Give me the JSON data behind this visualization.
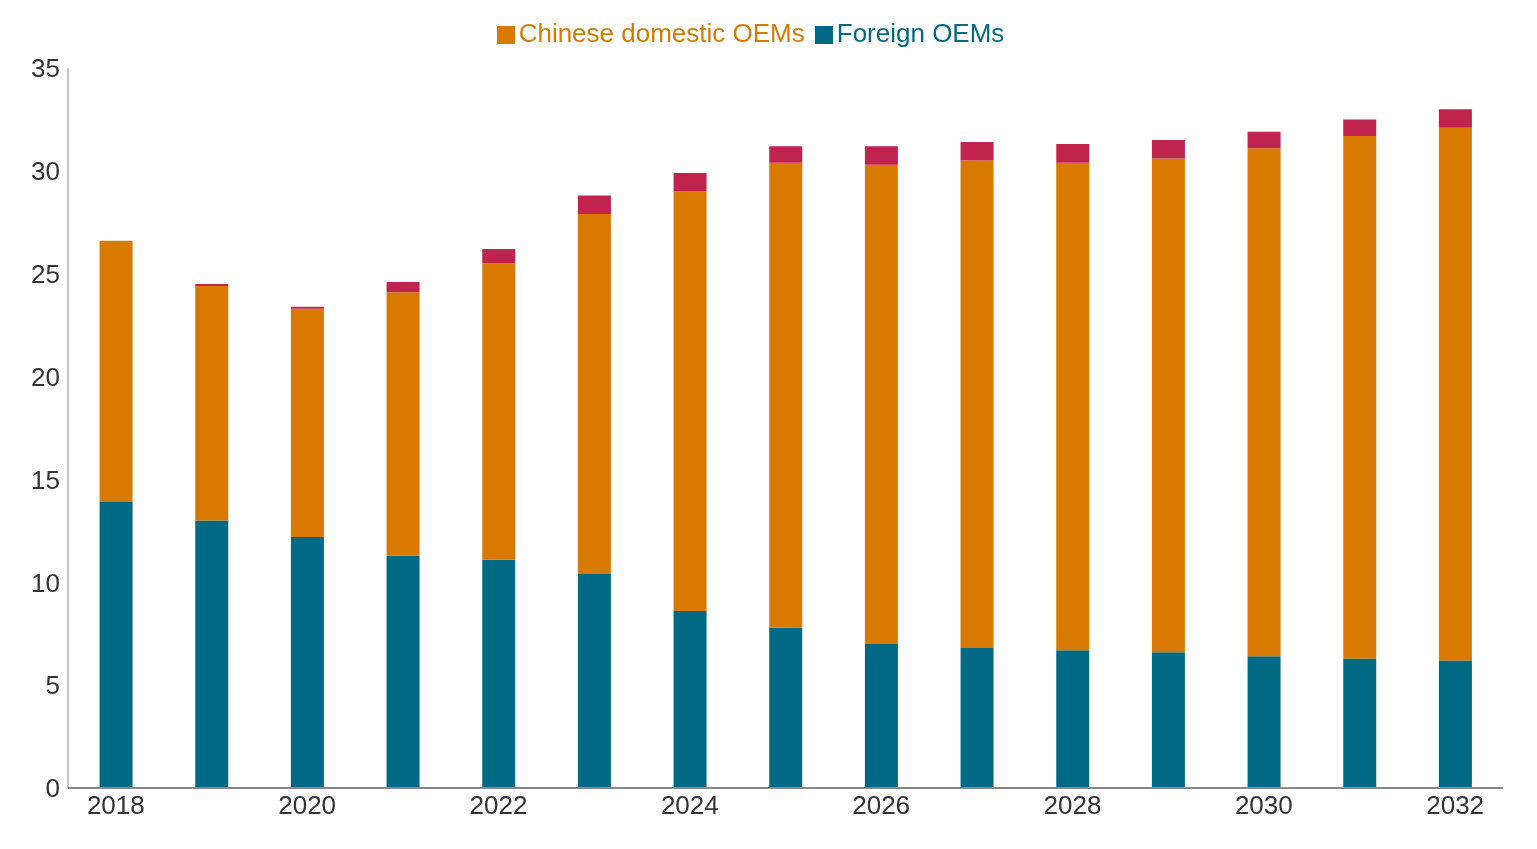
{
  "chart_data": {
    "type": "bar",
    "stacked": true,
    "legend": "top",
    "grid": false,
    "categories": [
      "2018",
      null,
      "2020",
      null,
      "2022",
      null,
      "2024",
      null,
      "2026",
      null,
      "2028",
      null,
      "2030",
      null,
      "2032"
    ],
    "ylim": [
      0,
      35
    ],
    "yticks": [
      0,
      5,
      10,
      15,
      20,
      25,
      30,
      35
    ],
    "series": [
      {
        "name": "Foreign OEMs",
        "color": "#006a85",
        "values": [
          13.9,
          13.0,
          12.2,
          11.3,
          11.1,
          10.4,
          8.6,
          7.8,
          7.0,
          6.8,
          6.7,
          6.6,
          6.4,
          6.3,
          6.2
        ]
      },
      {
        "name": "Chinese domestic OEMs",
        "color": "#d97a00",
        "values": [
          12.7,
          11.4,
          11.1,
          12.8,
          14.4,
          17.5,
          20.4,
          22.6,
          23.3,
          23.7,
          23.7,
          24.0,
          24.7,
          25.4,
          25.9
        ]
      },
      {
        "color": "#c0244e",
        "values": [
          0,
          0.1,
          0.1,
          0.5,
          0.7,
          0.9,
          0.9,
          0.8,
          0.9,
          0.9,
          0.9,
          0.9,
          0.8,
          0.8,
          0.9
        ]
      }
    ]
  }
}
